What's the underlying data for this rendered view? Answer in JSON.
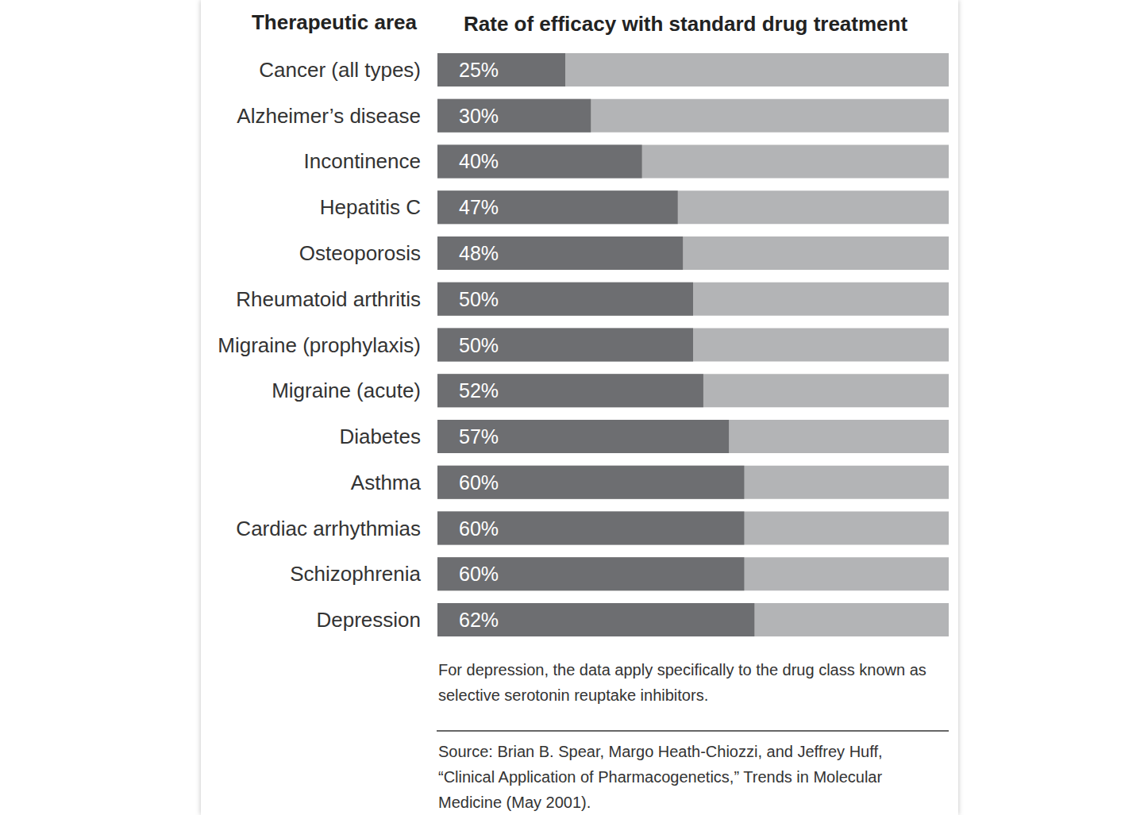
{
  "chart_data": {
    "type": "bar",
    "orientation": "horizontal",
    "title": "Rate of efficacy with standard drug treatment",
    "y_label": "Therapeutic area",
    "categories": [
      "Cancer (all types)",
      "Alzheimer’s disease",
      "Incontinence",
      "Hepatitis C",
      "Osteoporosis",
      "Rheumatoid arthritis",
      "Migraine (prophylaxis)",
      "Migraine (acute)",
      "Diabetes",
      "Asthma",
      "Cardiac arrhythmias",
      "Schizophrenia",
      "Depression"
    ],
    "values": [
      25,
      30,
      40,
      47,
      48,
      50,
      50,
      52,
      57,
      60,
      60,
      60,
      62
    ],
    "value_labels": [
      "25%",
      "30%",
      "40%",
      "47%",
      "48%",
      "50%",
      "50%",
      "52%",
      "57%",
      "60%",
      "60%",
      "60%",
      "62%"
    ],
    "data_labels": true,
    "color": "#6d6e71",
    "xlim": [
      0,
      100
    ],
    "tick_labels": false,
    "grid": false,
    "annotations": [
      "For depression, the data apply specifically to the drug class known as selective serotonin reuptake inhibitors.",
      "Source: Brian B. Spear, Margo Heath-Chiozzi, and Jeffrey Huff, “Clinical Application of Pharmacogenetics,” Trends in Molecular Medicine (May 2001)."
    ]
  }
}
